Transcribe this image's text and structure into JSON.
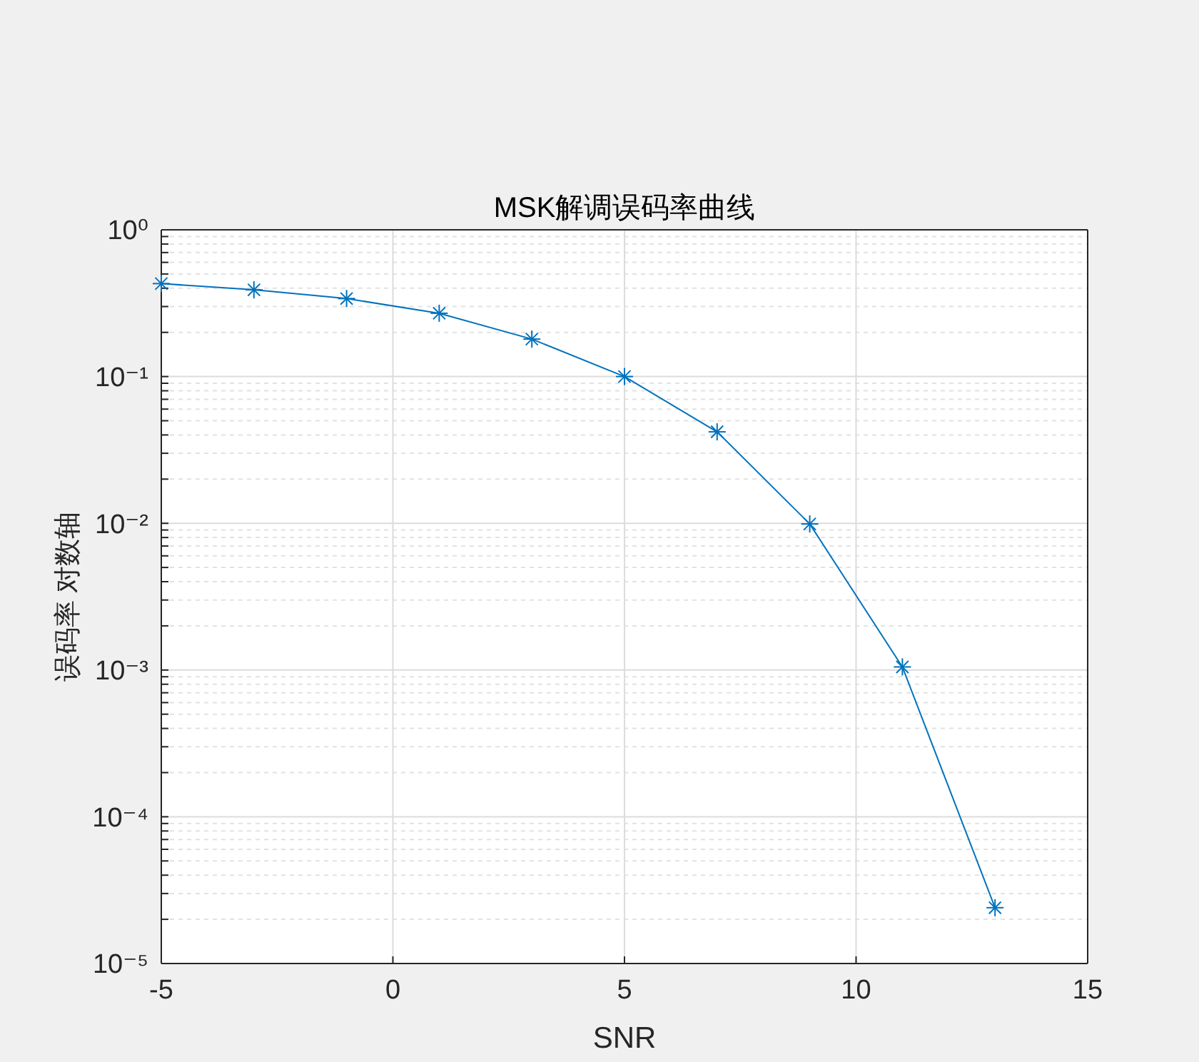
{
  "chart_data": {
    "type": "line",
    "title": "MSK解调误码率曲线",
    "xlabel": "SNR",
    "ylabel": "误码率 对数轴",
    "x": [
      -5,
      -3,
      -1,
      1,
      3,
      5,
      7,
      9,
      11,
      13
    ],
    "series": [
      {
        "color": "#0072bd",
        "values": [
          0.43,
          0.39,
          0.34,
          0.27,
          0.18,
          0.1,
          0.042,
          0.0099,
          0.00105,
          2.4e-05
        ]
      }
    ],
    "xlim": [
      -5,
      15
    ],
    "xticks": [
      -5,
      0,
      5,
      10,
      15
    ],
    "ylim": [
      1e-05,
      1
    ],
    "yticks": [
      {
        "value": 1e-05,
        "label": "10⁻⁵"
      },
      {
        "value": 2e-05,
        "label": null
      },
      {
        "value": 3e-05,
        "label": null
      },
      {
        "value": 4e-05,
        "label": null
      },
      {
        "value": 5e-05,
        "label": null
      },
      {
        "value": 6e-05,
        "label": null
      },
      {
        "value": 7e-05,
        "label": null
      },
      {
        "value": 8e-05,
        "label": null
      },
      {
        "value": 9e-05,
        "label": null
      },
      {
        "value": 0.0001,
        "label": "10⁻⁴"
      },
      {
        "value": 0.0002,
        "label": null
      },
      {
        "value": 0.0003,
        "label": null
      },
      {
        "value": 0.0004,
        "label": null
      },
      {
        "value": 0.0005,
        "label": null
      },
      {
        "value": 0.0006,
        "label": null
      },
      {
        "value": 0.0007,
        "label": null
      },
      {
        "value": 0.0008,
        "label": null
      },
      {
        "value": 0.0009,
        "label": null
      },
      {
        "value": 0.001,
        "label": "10⁻³"
      },
      {
        "value": 0.002,
        "label": null
      },
      {
        "value": 0.003,
        "label": null
      },
      {
        "value": 0.004,
        "label": null
      },
      {
        "value": 0.005,
        "label": null
      },
      {
        "value": 0.006,
        "label": null
      },
      {
        "value": 0.007,
        "label": null
      },
      {
        "value": 0.008,
        "label": null
      },
      {
        "value": 0.009,
        "label": null
      },
      {
        "value": 0.01,
        "label": "10⁻²"
      },
      {
        "value": 0.02,
        "label": null
      },
      {
        "value": 0.03,
        "label": null
      },
      {
        "value": 0.04,
        "label": null
      },
      {
        "value": 0.05,
        "label": null
      },
      {
        "value": 0.06,
        "label": null
      },
      {
        "value": 0.07,
        "label": null
      },
      {
        "value": 0.08,
        "label": null
      },
      {
        "value": 0.09,
        "label": null
      },
      {
        "value": 0.1,
        "label": "10⁻¹"
      },
      {
        "value": 0.2,
        "label": null
      },
      {
        "value": 0.3,
        "label": null
      },
      {
        "value": 0.4,
        "label": null
      },
      {
        "value": 0.5,
        "label": null
      },
      {
        "value": 0.6,
        "label": null
      },
      {
        "value": 0.7,
        "label": null
      },
      {
        "value": 0.8,
        "label": null
      },
      {
        "value": 0.9,
        "label": null
      },
      {
        "value": 1,
        "label": "10⁰"
      }
    ],
    "log": true,
    "grid": true,
    "marker": "cross",
    "line_style": "solid"
  }
}
